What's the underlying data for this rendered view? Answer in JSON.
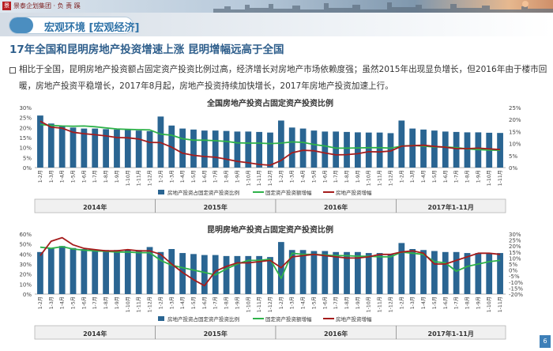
{
  "header": {
    "company": "景泰企划集团 · 负 责 蹊",
    "section_title": "宏观环境 [宏观经济]",
    "page_number": "6",
    "accent_color": "#4b8ec0"
  },
  "headline": "17年全国和昆明房地产投资增速上涨 昆明增幅远高于全国",
  "paragraph": "相比于全国，昆明房地产投资额占固定资产投资比例过高，经济增长对房地产市场依赖度强；虽然2015年出现显负增长，但2016年由于楼市回暖，房地产投资平稳增长，2017年8月起，房地产投资持续加快增长，2017年房地产投资加速上行。",
  "chart_data": [
    {
      "type": "bar",
      "title": "全国房地产投资占固定资产投资比例",
      "categories": [
        "1-2月",
        "1-3月",
        "1-4月",
        "1-5月",
        "1-6月",
        "1-7月",
        "1-8月",
        "1-9月",
        "1-10月",
        "1-11月",
        "1-12月",
        "1-2月",
        "1-3月",
        "1-4月",
        "1-5月",
        "1-6月",
        "1-7月",
        "1-8月",
        "1-9月",
        "1-10月",
        "1-11月",
        "1-12月",
        "1-2月",
        "1-3月",
        "1-4月",
        "1-5月",
        "1-6月",
        "1-7月",
        "1-8月",
        "1-9月",
        "1-10月",
        "1-11月",
        "1-12月",
        "1-2月",
        "1-3月",
        "1-4月",
        "1-5月",
        "1-6月",
        "1-7月",
        "1-8月",
        "1-9月",
        "1-10月",
        "1-11月"
      ],
      "year_groups": [
        {
          "label": "2014年",
          "count": 11
        },
        {
          "label": "2015年",
          "count": 11
        },
        {
          "label": "2016年",
          "count": 11
        },
        {
          "label": "2017年1-11月",
          "count": 10
        }
      ],
      "y_left": {
        "ticks": [
          "0%",
          "5%",
          "10%",
          "15%",
          "20%",
          "25%",
          "30%"
        ],
        "min": 0,
        "max": 30
      },
      "y_right": {
        "ticks": [
          "0%",
          "5%",
          "10%",
          "15%",
          "20%",
          "25%"
        ],
        "min": 0,
        "max": 25
      },
      "series": [
        {
          "name": "房地产投资占固定资产投资比例",
          "axis": "left",
          "kind": "bar",
          "color": "#2a6592",
          "values": [
            26,
            22,
            21,
            20,
            19.5,
            19.5,
            19.2,
            19,
            18.8,
            18.5,
            18.2,
            25.5,
            21,
            19.5,
            19,
            18.5,
            18.5,
            18.3,
            18,
            18,
            17.8,
            17.5,
            23.5,
            20,
            19.5,
            18.5,
            18,
            18,
            17.8,
            17.6,
            17.5,
            17.5,
            17.2,
            23.5,
            19.5,
            19,
            18.5,
            18,
            17.8,
            17.6,
            17.6,
            17.4,
            17.3
          ]
        },
        {
          "name": "固定资产投资额增幅",
          "axis": "right",
          "kind": "line",
          "color": "#2fb24a",
          "values": [
            17.9,
            17.6,
            17.3,
            17.2,
            17.3,
            17,
            16.5,
            16.1,
            15.9,
            15.8,
            15.7,
            13.9,
            13.5,
            12,
            11.4,
            11.4,
            11.2,
            10.9,
            10.3,
            10.2,
            10.2,
            10,
            10.2,
            10.7,
            10.5,
            9.6,
            9,
            8.1,
            8.1,
            8.2,
            8.3,
            8.3,
            8.1,
            8.9,
            9.2,
            8.9,
            8.6,
            8.6,
            8.3,
            7.8,
            7.5,
            7.3,
            7.2
          ]
        },
        {
          "name": "房地产投资增幅",
          "axis": "right",
          "kind": "line",
          "color": "#a51c1c",
          "values": [
            19.3,
            16.8,
            16.4,
            14.7,
            14.1,
            13.7,
            13.2,
            12.5,
            12.4,
            11.9,
            10.5,
            10.4,
            8.5,
            6,
            5.1,
            4.6,
            4.3,
            3.5,
            2.6,
            2,
            1.3,
            1,
            3,
            6.2,
            7.2,
            7,
            6.1,
            5.3,
            5.4,
            5.8,
            6.6,
            6.5,
            6.9,
            8.9,
            9.1,
            9.3,
            8.8,
            8.5,
            7.9,
            7.9,
            8.1,
            7.8,
            7.5
          ]
        }
      ]
    },
    {
      "type": "bar",
      "title": "昆明房地产投资占固定资产投资比例",
      "categories": [
        "1-2月",
        "1-3月",
        "1-4月",
        "1-5月",
        "1-6月",
        "1-7月",
        "1-8月",
        "1-9月",
        "1-10月",
        "1-11月",
        "1-12月",
        "1-2月",
        "1-3月",
        "1-4月",
        "1-5月",
        "1-6月",
        "1-7月",
        "1-8月",
        "1-9月",
        "1-10月",
        "1-11月",
        "1-12月",
        "1-2月",
        "1-3月",
        "1-4月",
        "1-5月",
        "1-6月",
        "1-7月",
        "1-8月",
        "1-9月",
        "1-10月",
        "1-11月",
        "1-12月",
        "1-2月",
        "1-3月",
        "1-4月",
        "1-5月",
        "1-6月",
        "1-7月",
        "1-8月",
        "1-9月",
        "1-10月",
        "1-11月"
      ],
      "year_groups": [
        {
          "label": "2014年",
          "count": 11
        },
        {
          "label": "2015年",
          "count": 11
        },
        {
          "label": "2016年",
          "count": 11
        },
        {
          "label": "2017年1-11月",
          "count": 10
        }
      ],
      "y_left": {
        "ticks": [
          "0%",
          "10%",
          "20%",
          "30%",
          "40%",
          "50%",
          "60%"
        ],
        "min": 0,
        "max": 60
      },
      "y_right": {
        "ticks": [
          "-20%",
          "-15%",
          "-10%",
          "-5%",
          "0%",
          "5%",
          "10%",
          "15%",
          "20%",
          "25%",
          "30%"
        ],
        "min": -20,
        "max": 30
      },
      "series": [
        {
          "name": "房地产投资占固定资产投资比例",
          "axis": "left",
          "kind": "bar",
          "color": "#2a6592",
          "values": [
            42,
            46,
            48,
            46,
            45,
            44,
            44,
            44,
            44,
            44,
            47,
            42,
            45,
            41,
            40,
            39,
            39,
            38,
            38,
            38,
            38,
            37,
            52,
            44,
            44,
            43,
            43,
            42,
            42,
            42,
            41,
            41,
            40,
            51,
            45,
            44,
            43,
            42,
            42,
            41,
            41,
            41,
            41
          ]
        },
        {
          "name": "固定资产投资额增幅",
          "axis": "right",
          "kind": "line",
          "color": "#2fb24a",
          "values": [
            19,
            18,
            19.5,
            17.5,
            16.5,
            16,
            15.5,
            15,
            15,
            14.5,
            14.5,
            8,
            4,
            2,
            0,
            -2,
            -4,
            1,
            5,
            8,
            8,
            9,
            -7,
            14,
            13,
            13,
            12.5,
            12,
            12,
            11.5,
            11.5,
            11,
            11,
            15,
            14,
            13,
            7,
            6,
            -1,
            3,
            5,
            7,
            8
          ]
        },
        {
          "name": "房地产投资增幅",
          "axis": "right",
          "kind": "line",
          "color": "#a51c1c",
          "values": [
            12,
            24,
            27,
            21,
            18,
            17,
            16,
            16,
            17,
            16,
            16,
            13,
            5,
            -2,
            -8,
            -13,
            -1,
            3,
            6,
            6,
            7,
            8,
            2,
            11,
            12,
            13,
            12,
            11,
            10,
            10,
            11,
            13,
            13,
            15,
            16,
            14,
            5,
            5,
            8,
            11,
            14,
            14,
            13
          ]
        }
      ]
    }
  ]
}
